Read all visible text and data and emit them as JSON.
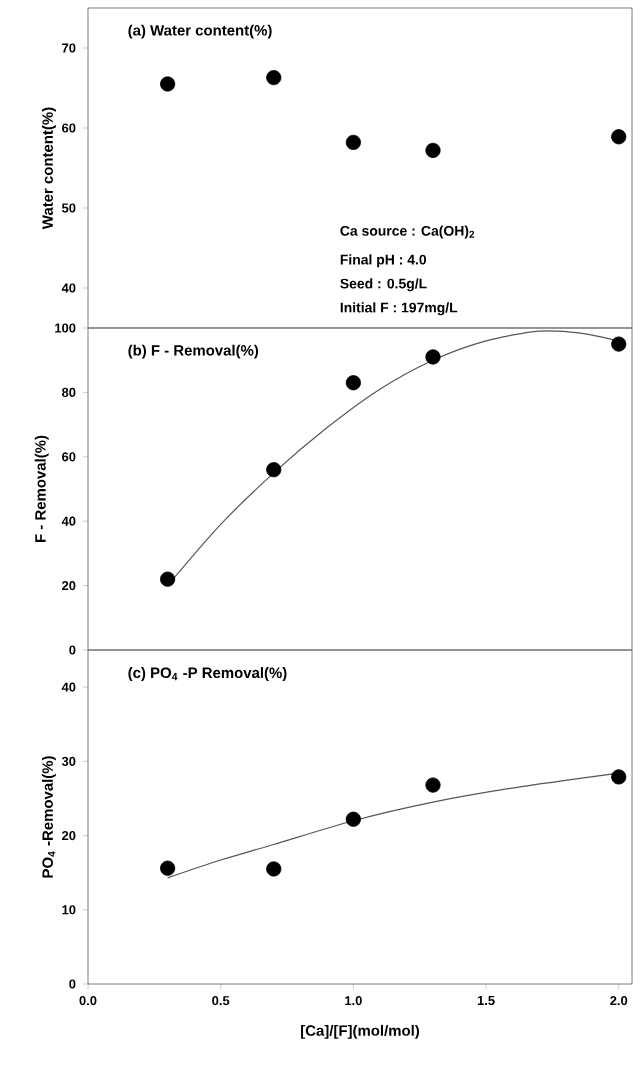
{
  "chart_data": [
    {
      "type": "scatter",
      "title": "(a) Water content(%)",
      "ylabel": "Water content(%)",
      "xlim": [
        0,
        2.05
      ],
      "ylim": [
        35,
        75
      ],
      "yticks": [
        40,
        50,
        60,
        70
      ],
      "tick_labels": "y",
      "annotations": [
        "Ca source : Ca(OH)$_{2}$",
        "Final pH : 4.0",
        "Seed : 0.5g/L",
        "Initial F : 197mg/L"
      ],
      "series": [
        {
          "color": "#000000",
          "marker": "circle",
          "x": [
            0.3,
            0.7,
            1.0,
            1.3,
            2.0
          ],
          "values": [
            65.5,
            66.3,
            58.2,
            57.2,
            58.9
          ]
        }
      ]
    },
    {
      "type": "scatter",
      "title": "(b) F - Removal(%)",
      "ylabel": "F - Removal(%)",
      "xlim": [
        0,
        2.05
      ],
      "ylim": [
        0,
        100
      ],
      "yticks": [
        0,
        20,
        40,
        60,
        80,
        100
      ],
      "tick_labels": "y",
      "series": [
        {
          "type": "line",
          "color": "#555555",
          "x": [
            0.3,
            0.5,
            0.7,
            0.9,
            1.1,
            1.3,
            1.5,
            1.7,
            1.85,
            2.0
          ],
          "values": [
            20,
            39,
            55,
            69,
            81,
            90,
            96,
            99,
            98.5,
            96
          ]
        },
        {
          "color": "#000000",
          "marker": "circle",
          "x": [
            0.3,
            0.7,
            1.0,
            1.3,
            2.0
          ],
          "values": [
            22,
            56,
            83,
            91,
            95
          ]
        }
      ]
    },
    {
      "type": "scatter",
      "title": "(c) PO$_{4}$ -P Removal(%)",
      "ylabel": "PO$_{4}$ -Removal(%)",
      "xlabel": "[Ca]/[F](mol/mol)",
      "xlim": [
        0,
        2.05
      ],
      "ylim": [
        0,
        45
      ],
      "xticks": [
        {
          "value": 0,
          "label": "0.0"
        },
        0.5,
        {
          "value": 1,
          "label": "1.0"
        },
        1.5,
        {
          "value": 2,
          "label": "2.0"
        }
      ],
      "yticks": [
        0,
        10,
        20,
        30,
        40
      ],
      "series": [
        {
          "type": "line",
          "color": "#555555",
          "x": [
            0.3,
            0.5,
            0.7,
            1.0,
            1.3,
            1.6,
            2.0
          ],
          "values": [
            14.3,
            16.7,
            18.8,
            22,
            24.5,
            26.4,
            28.4
          ]
        },
        {
          "color": "#000000",
          "marker": "circle",
          "x": [
            0.3,
            0.7,
            1.0,
            1.3,
            2.0
          ],
          "values": [
            15.6,
            15.5,
            22.2,
            26.8,
            27.9
          ]
        }
      ]
    }
  ]
}
